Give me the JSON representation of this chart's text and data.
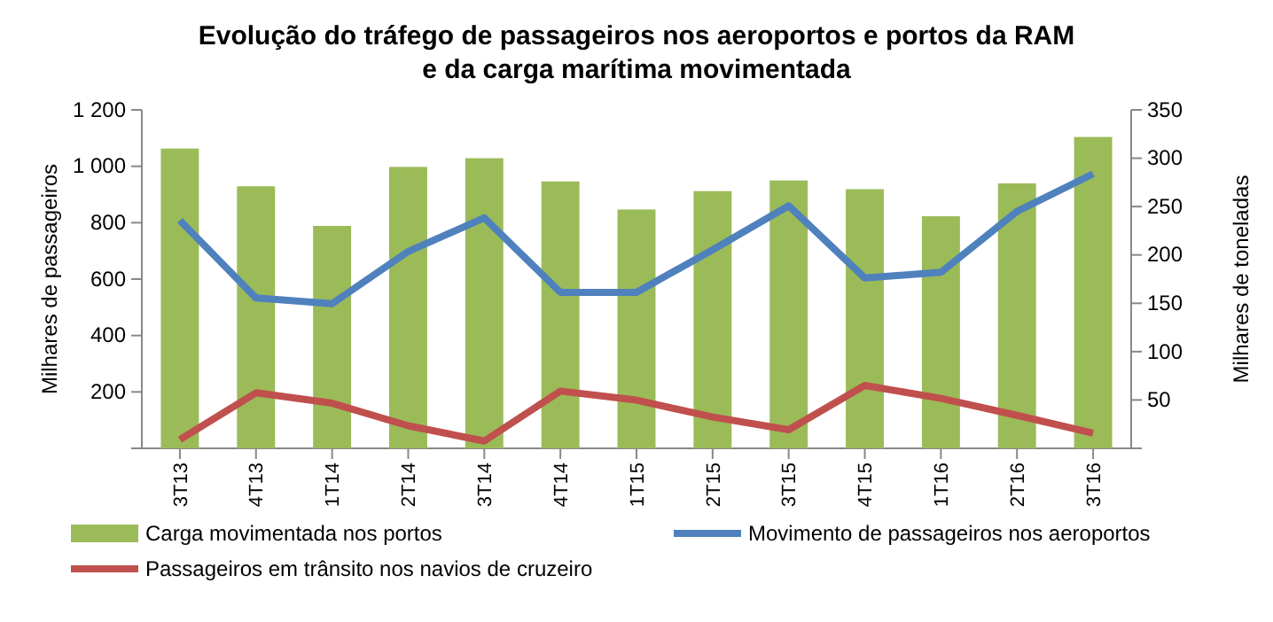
{
  "chart_data": {
    "type": "bar",
    "title": "Evolução do tráfego de passageiros nos aeroportos e portos da RAM e da carga marítima movimentada",
    "ylabel": "Milhares de passageiros",
    "y2label": "Milhares de toneladas",
    "categories": [
      "3T13",
      "4T13",
      "1T14",
      "2T14",
      "3T14",
      "4T14",
      "1T15",
      "2T15",
      "3T15",
      "4T15",
      "1T16",
      "2T16",
      "3T16"
    ],
    "series": [
      {
        "name": "Carga movimentada nos portos",
        "axis": "y2",
        "color": "#9bbb59",
        "values": [
          310,
          271,
          230,
          291,
          300,
          276,
          247,
          266,
          277,
          268,
          240,
          274,
          322
        ]
      },
      {
        "name": "Movimento de passageiros nos aeroportos",
        "type": "line",
        "color": "#4f81bd",
        "values": [
          808,
          533,
          513,
          698,
          817,
          553,
          553,
          704,
          860,
          604,
          624,
          840,
          973
        ]
      },
      {
        "name": "Passageiros em trânsito nos navios de cruzeiro",
        "type": "line",
        "color": "#c0504d",
        "values": [
          31,
          197,
          160,
          80,
          26,
          203,
          171,
          111,
          66,
          223,
          177,
          117,
          54
        ]
      }
    ],
    "ylim": [
      0,
      1200
    ],
    "yticks": [
      {
        "value": 0,
        "label": null
      },
      200,
      400,
      600,
      800,
      {
        "value": 1000,
        "label": "1 000"
      },
      {
        "value": 1200,
        "label": "1 200"
      }
    ],
    "y2lim": [
      0,
      350
    ],
    "y2ticks": [
      {
        "value": 0,
        "label": null
      },
      50,
      100,
      150,
      200,
      250,
      300,
      350
    ],
    "grid": false,
    "legend": "bottom",
    "marker": "none",
    "line_style": "solid"
  }
}
